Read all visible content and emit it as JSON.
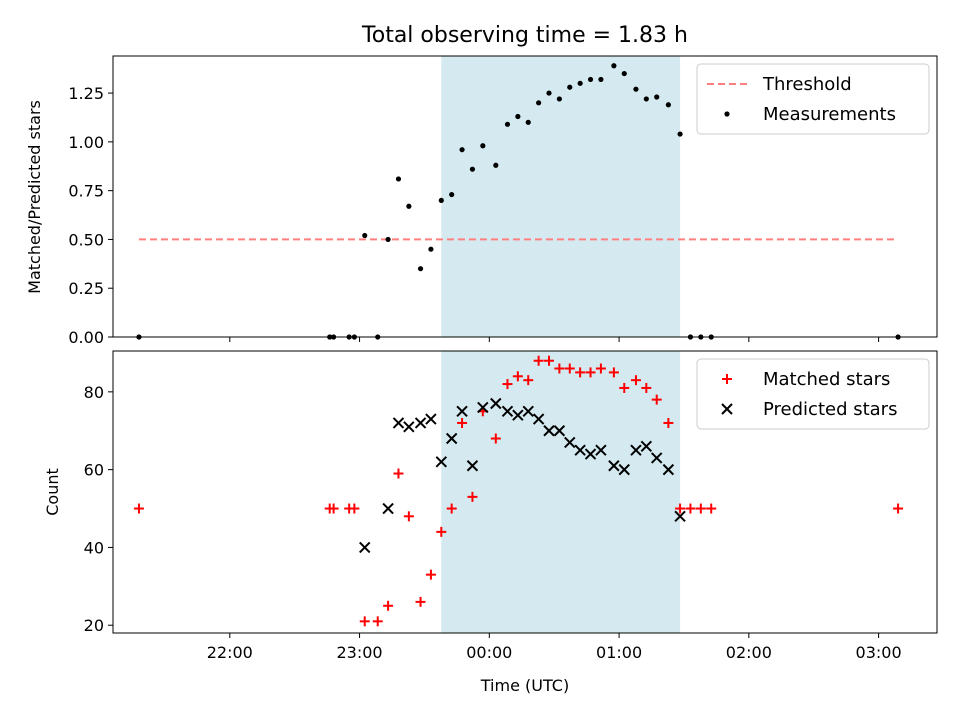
{
  "chart_data": [
    {
      "type": "scatter",
      "title": "Total observing time = 1.83 h",
      "xlabel": "",
      "ylabel": "Matched/Predicted stars",
      "xlim_hours": [
        21.1,
        27.45
      ],
      "ylim": [
        0,
        1.44
      ],
      "yticks": [
        "0.00",
        "0.25",
        "0.50",
        "0.75",
        "1.00",
        "1.25"
      ],
      "ytick_values": [
        0,
        0.25,
        0.5,
        0.75,
        1.0,
        1.25
      ],
      "shaded_span_hours": [
        23.63,
        25.47
      ],
      "shade_color": "#d4eaf0",
      "legend_position": "upper-right",
      "series": [
        {
          "name": "Threshold",
          "kind": "dashed-line",
          "color": "#ff7f7f",
          "x_hours": [
            21.3,
            27.15
          ],
          "y": [
            0.5,
            0.5
          ]
        },
        {
          "name": "Measurements",
          "kind": "dots",
          "color": "#000000",
          "points": [
            [
              21.3,
              0
            ],
            [
              22.77,
              0
            ],
            [
              22.8,
              0
            ],
            [
              22.92,
              0
            ],
            [
              22.96,
              0
            ],
            [
              23.04,
              0.52
            ],
            [
              23.14,
              0
            ],
            [
              23.22,
              0.5
            ],
            [
              23.3,
              0.81
            ],
            [
              23.38,
              0.67
            ],
            [
              23.47,
              0.35
            ],
            [
              23.55,
              0.45
            ],
            [
              23.63,
              0.7
            ],
            [
              23.71,
              0.73
            ],
            [
              23.79,
              0.96
            ],
            [
              23.87,
              0.86
            ],
            [
              23.95,
              0.98
            ],
            [
              24.05,
              0.88
            ],
            [
              24.14,
              1.09
            ],
            [
              24.22,
              1.13
            ],
            [
              24.3,
              1.1
            ],
            [
              24.38,
              1.2
            ],
            [
              24.46,
              1.25
            ],
            [
              24.54,
              1.22
            ],
            [
              24.62,
              1.28
            ],
            [
              24.7,
              1.3
            ],
            [
              24.78,
              1.32
            ],
            [
              24.86,
              1.32
            ],
            [
              24.96,
              1.39
            ],
            [
              25.04,
              1.35
            ],
            [
              25.13,
              1.27
            ],
            [
              25.21,
              1.22
            ],
            [
              25.29,
              1.23
            ],
            [
              25.38,
              1.19
            ],
            [
              25.47,
              1.04
            ],
            [
              25.55,
              0
            ],
            [
              25.63,
              0
            ],
            [
              25.71,
              0
            ],
            [
              27.15,
              0
            ]
          ]
        }
      ]
    },
    {
      "type": "scatter",
      "title": "",
      "xlabel": "Time (UTC)",
      "ylabel": "Count",
      "xlim_hours": [
        21.1,
        27.45
      ],
      "ylim": [
        18,
        90.5
      ],
      "yticks": [
        "20",
        "40",
        "60",
        "80"
      ],
      "ytick_values": [
        20,
        40,
        60,
        80
      ],
      "xtick_hours": [
        22,
        23,
        24,
        25,
        26,
        27
      ],
      "xticks": [
        "22:00",
        "23:00",
        "00:00",
        "01:00",
        "02:00",
        "03:00"
      ],
      "shaded_span_hours": [
        23.63,
        25.47
      ],
      "shade_color": "#d4eaf0",
      "legend_position": "upper-right",
      "series": [
        {
          "name": "Matched stars",
          "marker": "plus",
          "color": "#ff0000",
          "points": [
            [
              21.3,
              50
            ],
            [
              22.77,
              50
            ],
            [
              22.8,
              50
            ],
            [
              22.92,
              50
            ],
            [
              22.96,
              50
            ],
            [
              23.04,
              21
            ],
            [
              23.14,
              21
            ],
            [
              23.22,
              25
            ],
            [
              23.3,
              59
            ],
            [
              23.38,
              48
            ],
            [
              23.47,
              26
            ],
            [
              23.55,
              33
            ],
            [
              23.63,
              44
            ],
            [
              23.71,
              50
            ],
            [
              23.79,
              72
            ],
            [
              23.87,
              53
            ],
            [
              23.95,
              75
            ],
            [
              24.05,
              68
            ],
            [
              24.14,
              82
            ],
            [
              24.22,
              84
            ],
            [
              24.3,
              83
            ],
            [
              24.38,
              88
            ],
            [
              24.46,
              88
            ],
            [
              24.54,
              86
            ],
            [
              24.62,
              86
            ],
            [
              24.7,
              85
            ],
            [
              24.78,
              85
            ],
            [
              24.86,
              86
            ],
            [
              24.96,
              85
            ],
            [
              25.04,
              81
            ],
            [
              25.13,
              83
            ],
            [
              25.21,
              81
            ],
            [
              25.29,
              78
            ],
            [
              25.38,
              72
            ],
            [
              25.47,
              50
            ],
            [
              25.55,
              50
            ],
            [
              25.63,
              50
            ],
            [
              25.71,
              50
            ],
            [
              27.15,
              50
            ]
          ]
        },
        {
          "name": "Predicted stars",
          "marker": "x",
          "color": "#000000",
          "points": [
            [
              23.04,
              40
            ],
            [
              23.22,
              50
            ],
            [
              23.3,
              72
            ],
            [
              23.38,
              71
            ],
            [
              23.47,
              72
            ],
            [
              23.55,
              73
            ],
            [
              23.63,
              62
            ],
            [
              23.71,
              68
            ],
            [
              23.79,
              75
            ],
            [
              23.87,
              61
            ],
            [
              23.95,
              76
            ],
            [
              24.05,
              77
            ],
            [
              24.14,
              75
            ],
            [
              24.22,
              74
            ],
            [
              24.3,
              75
            ],
            [
              24.38,
              73
            ],
            [
              24.46,
              70
            ],
            [
              24.54,
              70
            ],
            [
              24.62,
              67
            ],
            [
              24.7,
              65
            ],
            [
              24.78,
              64
            ],
            [
              24.86,
              65
            ],
            [
              24.96,
              61
            ],
            [
              25.04,
              60
            ],
            [
              25.13,
              65
            ],
            [
              25.21,
              66
            ],
            [
              25.29,
              63
            ],
            [
              25.38,
              60
            ],
            [
              25.47,
              48
            ]
          ]
        }
      ]
    }
  ]
}
